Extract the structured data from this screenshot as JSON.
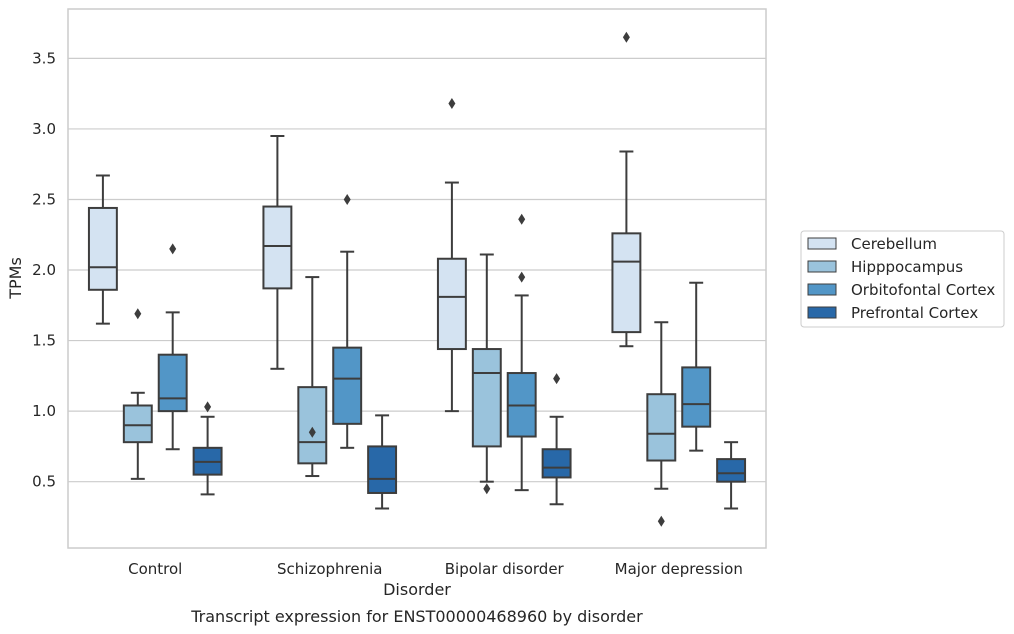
{
  "chart_data": {
    "type": "box",
    "caption": "Transcript expression for ENST00000468960 by disorder",
    "xlabel": "Disorder",
    "ylabel": "TPMs",
    "ylim": [
      0.03,
      3.85
    ],
    "yticks": [
      "0.5",
      "1.0",
      "1.5",
      "2.0",
      "2.5",
      "3.0",
      "3.5"
    ],
    "grid": "horizontal",
    "legend_position": "right",
    "categories": [
      "Control",
      "Schizophrenia",
      "Bipolar disorder",
      "Major depression"
    ],
    "series": [
      {
        "name": "Cerebellum",
        "color": "#d4e3f2",
        "boxes": [
          {
            "whislo": 1.62,
            "q1": 1.86,
            "med": 2.02,
            "q3": 2.44,
            "whishi": 2.67,
            "fliers": []
          },
          {
            "whislo": 1.3,
            "q1": 1.87,
            "med": 2.17,
            "q3": 2.45,
            "whishi": 2.95,
            "fliers": []
          },
          {
            "whislo": 1.0,
            "q1": 1.44,
            "med": 1.81,
            "q3": 2.08,
            "whishi": 2.62,
            "fliers": [
              3.18
            ]
          },
          {
            "whislo": 1.46,
            "q1": 1.56,
            "med": 2.06,
            "q3": 2.26,
            "whishi": 2.84,
            "fliers": [
              3.65
            ]
          }
        ]
      },
      {
        "name": "Hipppocampus",
        "color": "#9ac3dc",
        "boxes": [
          {
            "whislo": 0.52,
            "q1": 0.78,
            "med": 0.9,
            "q3": 1.04,
            "whishi": 1.13,
            "fliers": [
              1.69
            ]
          },
          {
            "whislo": 0.54,
            "q1": 0.63,
            "med": 0.78,
            "q3": 1.17,
            "whishi": 1.95,
            "fliers": [
              0.85
            ]
          },
          {
            "whislo": 0.5,
            "q1": 0.75,
            "med": 1.27,
            "q3": 1.44,
            "whishi": 2.11,
            "fliers": [
              0.45
            ]
          },
          {
            "whislo": 0.45,
            "q1": 0.65,
            "med": 0.84,
            "q3": 1.12,
            "whishi": 1.63,
            "fliers": [
              0.22
            ]
          }
        ]
      },
      {
        "name": "Orbitofontal Cortex",
        "color": "#5296c7",
        "boxes": [
          {
            "whislo": 0.73,
            "q1": 1.0,
            "med": 1.09,
            "q3": 1.4,
            "whishi": 1.7,
            "fliers": [
              2.15
            ]
          },
          {
            "whislo": 0.74,
            "q1": 0.91,
            "med": 1.23,
            "q3": 1.45,
            "whishi": 2.13,
            "fliers": [
              2.5
            ]
          },
          {
            "whislo": 0.44,
            "q1": 0.82,
            "med": 1.04,
            "q3": 1.27,
            "whishi": 1.82,
            "fliers": [
              1.95,
              2.36
            ]
          },
          {
            "whislo": 0.72,
            "q1": 0.89,
            "med": 1.05,
            "q3": 1.31,
            "whishi": 1.91,
            "fliers": []
          }
        ]
      },
      {
        "name": "Prefrontal Cortex",
        "color": "#2868a8",
        "boxes": [
          {
            "whislo": 0.41,
            "q1": 0.55,
            "med": 0.64,
            "q3": 0.74,
            "whishi": 0.96,
            "fliers": [
              1.03
            ]
          },
          {
            "whislo": 0.31,
            "q1": 0.42,
            "med": 0.52,
            "q3": 0.75,
            "whishi": 0.97,
            "fliers": []
          },
          {
            "whislo": 0.34,
            "q1": 0.53,
            "med": 0.6,
            "q3": 0.73,
            "whishi": 0.96,
            "fliers": [
              1.23
            ]
          },
          {
            "whislo": 0.31,
            "q1": 0.5,
            "med": 0.56,
            "q3": 0.66,
            "whishi": 0.78,
            "fliers": []
          }
        ]
      }
    ]
  }
}
